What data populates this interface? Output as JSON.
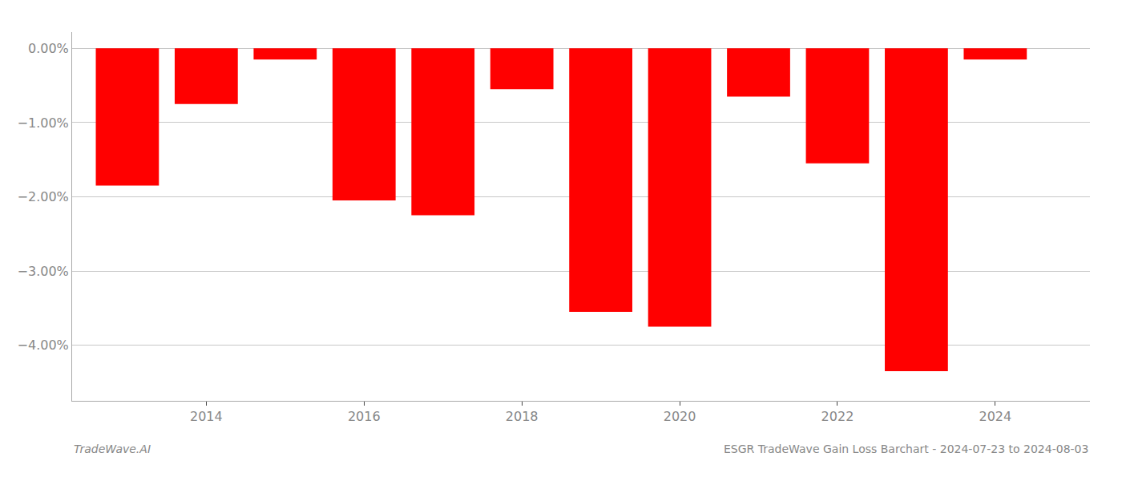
{
  "chart_data": {
    "type": "bar",
    "x": [
      2013,
      2014,
      2015,
      2016,
      2017,
      2018,
      2019,
      2020,
      2021,
      2022,
      2023,
      2024
    ],
    "values": [
      -1.85,
      -0.75,
      -0.15,
      -2.05,
      -2.25,
      -0.55,
      -3.55,
      -3.75,
      -0.65,
      -1.55,
      -4.35,
      -0.15
    ],
    "color": "#ff0000",
    "xlim": [
      2012.3,
      2025.2
    ],
    "xticks": [
      2014,
      2016,
      2018,
      2020,
      2022,
      2024
    ],
    "ylim": [
      -4.75,
      0.22
    ],
    "yticks": [
      {
        "value": 0.0,
        "label": "0.00%"
      },
      {
        "value": -1.0,
        "label": "−1.00%"
      },
      {
        "value": -2.0,
        "label": "−2.00%"
      },
      {
        "value": -3.0,
        "label": "−3.00%"
      },
      {
        "value": -4.0,
        "label": "−4.00%"
      }
    ],
    "grid": true,
    "annotations": [
      "TradeWave.AI",
      "ESGR TradeWave Gain Loss Barchart - 2024-07-23 to 2024-08-03"
    ]
  }
}
